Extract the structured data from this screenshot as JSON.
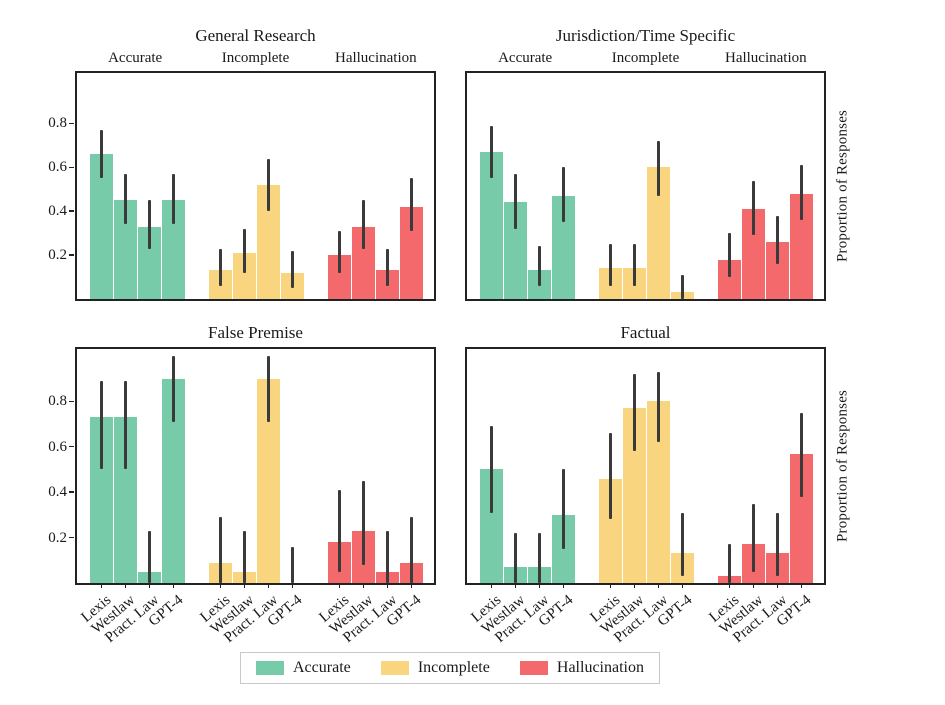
{
  "figure": {
    "ylabel": "Proportion of Responses",
    "colors": {
      "accurate": "#78cba9",
      "incomplete": "#f8d57e",
      "hallucination": "#f4696b",
      "error_bar": "#3a3a3a"
    },
    "legend": [
      {
        "label": "Accurate",
        "color": "#78cba9"
      },
      {
        "label": "Incomplete",
        "color": "#f8d57e"
      },
      {
        "label": "Hallucination",
        "color": "#f4696b"
      }
    ]
  },
  "chart_data": [
    {
      "type": "bar",
      "title": "General Research",
      "group_labels": [
        "Accurate",
        "Incomplete",
        "Hallucination"
      ],
      "categories": [
        "Lexis",
        "Westlaw",
        "Pract. Law",
        "GPT-4"
      ],
      "yticks": [
        0.2,
        0.4,
        0.6,
        0.8
      ],
      "ylim": [
        0,
        1.03
      ],
      "grid": false,
      "series": [
        {
          "name": "Accurate",
          "values": [
            0.66,
            0.45,
            0.33,
            0.45
          ],
          "ci_low": [
            0.55,
            0.34,
            0.23,
            0.34
          ],
          "ci_high": [
            0.77,
            0.57,
            0.45,
            0.57
          ]
        },
        {
          "name": "Incomplete",
          "values": [
            0.13,
            0.21,
            0.52,
            0.12
          ],
          "ci_low": [
            0.06,
            0.12,
            0.4,
            0.05
          ],
          "ci_high": [
            0.23,
            0.32,
            0.64,
            0.22
          ]
        },
        {
          "name": "Hallucination",
          "values": [
            0.2,
            0.33,
            0.13,
            0.42
          ],
          "ci_low": [
            0.12,
            0.23,
            0.06,
            0.31
          ],
          "ci_high": [
            0.31,
            0.45,
            0.23,
            0.55
          ]
        }
      ]
    },
    {
      "type": "bar",
      "title": "Jurisdiction/Time Specific",
      "group_labels": [
        "Accurate",
        "Incomplete",
        "Hallucination"
      ],
      "categories": [
        "Lexis",
        "Westlaw",
        "Pract. Law",
        "GPT-4"
      ],
      "yticks": [
        0.2,
        0.4,
        0.6,
        0.8
      ],
      "ylim": [
        0,
        1.03
      ],
      "grid": false,
      "series": [
        {
          "name": "Accurate",
          "values": [
            0.67,
            0.44,
            0.13,
            0.47
          ],
          "ci_low": [
            0.55,
            0.32,
            0.06,
            0.35
          ],
          "ci_high": [
            0.79,
            0.57,
            0.24,
            0.6
          ]
        },
        {
          "name": "Incomplete",
          "values": [
            0.14,
            0.14,
            0.6,
            0.03
          ],
          "ci_low": [
            0.06,
            0.06,
            0.47,
            0.0
          ],
          "ci_high": [
            0.25,
            0.25,
            0.72,
            0.11
          ]
        },
        {
          "name": "Hallucination",
          "values": [
            0.18,
            0.41,
            0.26,
            0.48
          ],
          "ci_low": [
            0.1,
            0.29,
            0.16,
            0.36
          ],
          "ci_high": [
            0.3,
            0.54,
            0.38,
            0.61
          ]
        }
      ]
    },
    {
      "type": "bar",
      "title": "False Premise",
      "group_labels": [
        "Accurate",
        "Incomplete",
        "Hallucination"
      ],
      "categories": [
        "Lexis",
        "Westlaw",
        "Pract. Law",
        "GPT-4"
      ],
      "yticks": [
        0.2,
        0.4,
        0.6,
        0.8
      ],
      "ylim": [
        0,
        1.03
      ],
      "grid": false,
      "series": [
        {
          "name": "Accurate",
          "values": [
            0.73,
            0.73,
            0.05,
            0.9
          ],
          "ci_low": [
            0.5,
            0.5,
            0.0,
            0.71
          ],
          "ci_high": [
            0.89,
            0.89,
            0.23,
            1.0
          ]
        },
        {
          "name": "Incomplete",
          "values": [
            0.09,
            0.05,
            0.9,
            0.0
          ],
          "ci_low": [
            0.0,
            0.0,
            0.71,
            0.0
          ],
          "ci_high": [
            0.29,
            0.23,
            1.0,
            0.16
          ]
        },
        {
          "name": "Hallucination",
          "values": [
            0.18,
            0.23,
            0.05,
            0.09
          ],
          "ci_low": [
            0.05,
            0.08,
            0.0,
            0.0
          ],
          "ci_high": [
            0.41,
            0.45,
            0.23,
            0.29
          ]
        }
      ]
    },
    {
      "type": "bar",
      "title": "Factual",
      "group_labels": [
        "Accurate",
        "Incomplete",
        "Hallucination"
      ],
      "categories": [
        "Lexis",
        "Westlaw",
        "Pract. Law",
        "GPT-4"
      ],
      "yticks": [
        0.2,
        0.4,
        0.6,
        0.8
      ],
      "ylim": [
        0,
        1.03
      ],
      "grid": false,
      "series": [
        {
          "name": "Accurate",
          "values": [
            0.5,
            0.07,
            0.07,
            0.3
          ],
          "ci_low": [
            0.31,
            0.0,
            0.0,
            0.15
          ],
          "ci_high": [
            0.69,
            0.22,
            0.22,
            0.5
          ]
        },
        {
          "name": "Incomplete",
          "values": [
            0.46,
            0.77,
            0.8,
            0.13
          ],
          "ci_low": [
            0.28,
            0.58,
            0.62,
            0.03
          ],
          "ci_high": [
            0.66,
            0.92,
            0.93,
            0.31
          ]
        },
        {
          "name": "Hallucination",
          "values": [
            0.03,
            0.17,
            0.13,
            0.57
          ],
          "ci_low": [
            0.0,
            0.05,
            0.03,
            0.38
          ],
          "ci_high": [
            0.17,
            0.35,
            0.31,
            0.75
          ]
        }
      ]
    }
  ]
}
